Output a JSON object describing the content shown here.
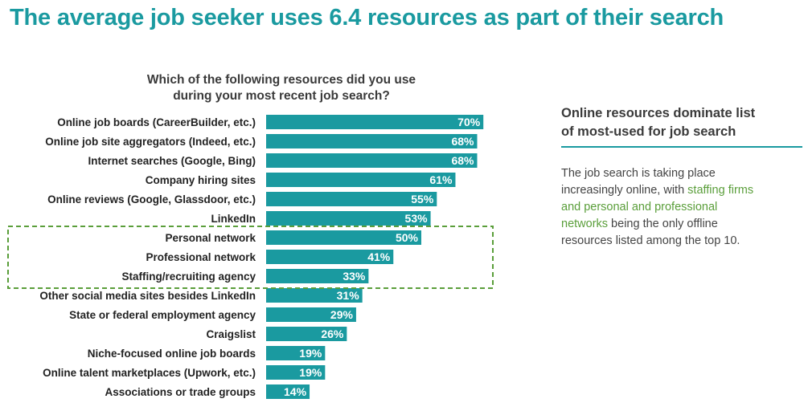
{
  "title": "The average job seeker uses 6.4 resources as part of their search",
  "chart_data": {
    "type": "bar",
    "orientation": "horizontal",
    "title": "Which of the following resources did you use during your most recent job search?",
    "title_lines": [
      "Which of the following resources did you use",
      "during your most recent job search?"
    ],
    "categories": [
      "Online job boards (CareerBuilder, etc.)",
      "Online job site aggregators (Indeed, etc.)",
      "Internet searches (Google, Bing)",
      "Company hiring sites",
      "Online reviews (Google, Glassdoor, etc.)",
      "LinkedIn",
      "Personal network",
      "Professional network",
      "Staffing/recruiting agency",
      "Other social media sites besides LinkedIn",
      "State or federal employment agency",
      "Craigslist",
      "Niche-focused online job boards",
      "Online talent marketplaces (Upwork, etc.)",
      "Associations or trade groups"
    ],
    "values": [
      70,
      68,
      68,
      61,
      55,
      53,
      50,
      41,
      33,
      31,
      29,
      26,
      19,
      19,
      14
    ],
    "value_labels": [
      "70%",
      "68%",
      "68%",
      "61%",
      "55%",
      "53%",
      "50%",
      "41%",
      "33%",
      "31%",
      "29%",
      "26%",
      "19%",
      "19%",
      "14%"
    ],
    "unit": "%",
    "xlim": [
      0,
      100
    ],
    "grid": false,
    "bar_color": "#1a9aa0",
    "highlight": {
      "categories": [
        "Personal network",
        "Professional network",
        "Staffing/recruiting agency"
      ],
      "style": "dashed-box",
      "color": "#5a9e3a"
    }
  },
  "side_panel": {
    "heading_lines": [
      "Online resources dominate list",
      "of most-used for job search"
    ],
    "body_lines": [
      [
        {
          "text": "The job search is taking place",
          "hl": false
        }
      ],
      [
        {
          "text": "increasingly online, with ",
          "hl": false
        },
        {
          "text": "staffing firms",
          "hl": true
        }
      ],
      [
        {
          "text": "and personal and professional",
          "hl": true
        }
      ],
      [
        {
          "text": "networks",
          "hl": true
        },
        {
          "text": " being the only offline",
          "hl": false
        }
      ],
      [
        {
          "text": "resources listed among the top 10.",
          "hl": false
        }
      ]
    ]
  },
  "colors": {
    "accent": "#1a9aa0",
    "highlight_green": "#5a9e3a",
    "text_dark": "#3a3a3a"
  }
}
